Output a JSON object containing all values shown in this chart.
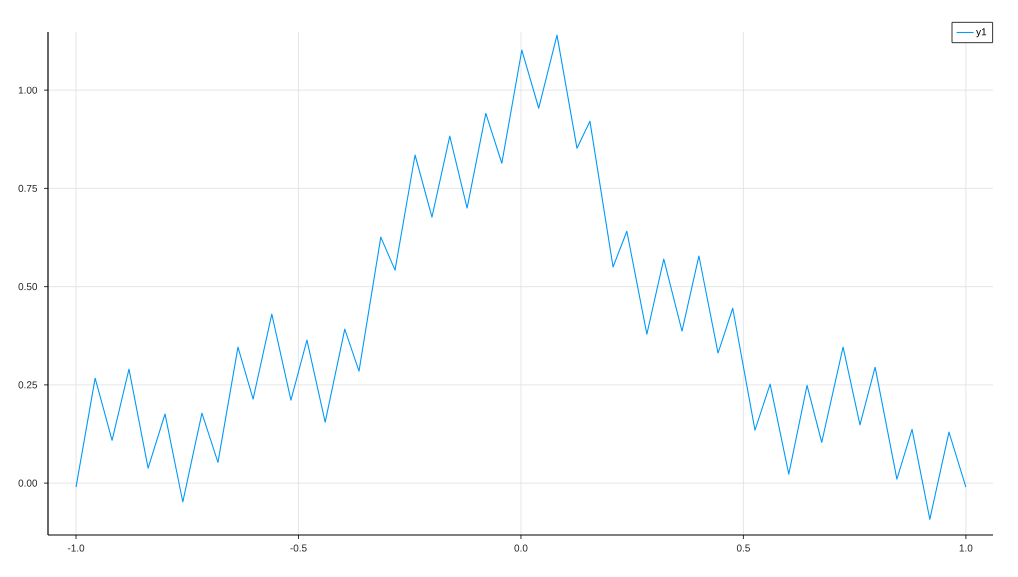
{
  "chart_data": {
    "type": "line",
    "x": [
      -1.0,
      -0.957,
      -0.919,
      -0.881,
      -0.838,
      -0.8,
      -0.76,
      -0.717,
      -0.681,
      -0.636,
      -0.602,
      -0.56,
      -0.517,
      -0.481,
      -0.44,
      -0.396,
      -0.364,
      -0.315,
      -0.283,
      -0.238,
      -0.2,
      -0.16,
      -0.121,
      -0.079,
      -0.043,
      0.002,
      0.04,
      0.081,
      0.126,
      0.155,
      0.207,
      0.238,
      0.283,
      0.321,
      0.362,
      0.4,
      0.443,
      0.476,
      0.526,
      0.56,
      0.602,
      0.643,
      0.676,
      0.724,
      0.762,
      0.796,
      0.845,
      0.879,
      0.919,
      0.962,
      1.0
    ],
    "series": [
      {
        "name": "y1",
        "color": "#009af9",
        "values": [
          -0.01,
          0.267,
          0.109,
          0.29,
          0.038,
          0.176,
          -0.048,
          0.178,
          0.053,
          0.346,
          0.214,
          0.43,
          0.211,
          0.364,
          0.155,
          0.392,
          0.285,
          0.626,
          0.542,
          0.835,
          0.677,
          0.883,
          0.7,
          0.941,
          0.814,
          1.102,
          0.954,
          1.14,
          0.852,
          0.921,
          0.55,
          0.641,
          0.379,
          0.57,
          0.387,
          0.578,
          0.331,
          0.445,
          0.135,
          0.252,
          0.023,
          0.249,
          0.104,
          0.346,
          0.148,
          0.295,
          0.01,
          0.137,
          -0.092,
          0.13,
          -0.01
        ]
      }
    ],
    "xlim": [
      -1.063,
      1.061
    ],
    "ylim": [
      -0.132,
      1.148
    ],
    "xticks": [
      {
        "value": -1.0,
        "label": "-1.0"
      },
      {
        "value": -0.5,
        "label": "-0.5"
      },
      {
        "value": 0.0,
        "label": "0.0"
      },
      {
        "value": 0.5,
        "label": "0.5"
      },
      {
        "value": 1.0,
        "label": "1.0"
      }
    ],
    "yticks": [
      {
        "value": 0.0,
        "label": "0.00"
      },
      {
        "value": 0.25,
        "label": "0.25"
      },
      {
        "value": 0.5,
        "label": "0.50"
      },
      {
        "value": 0.75,
        "label": "0.75"
      },
      {
        "value": 1.0,
        "label": "1.00"
      }
    ],
    "grid": true,
    "legend": "top right",
    "line_style": "solid",
    "marker": "none"
  }
}
